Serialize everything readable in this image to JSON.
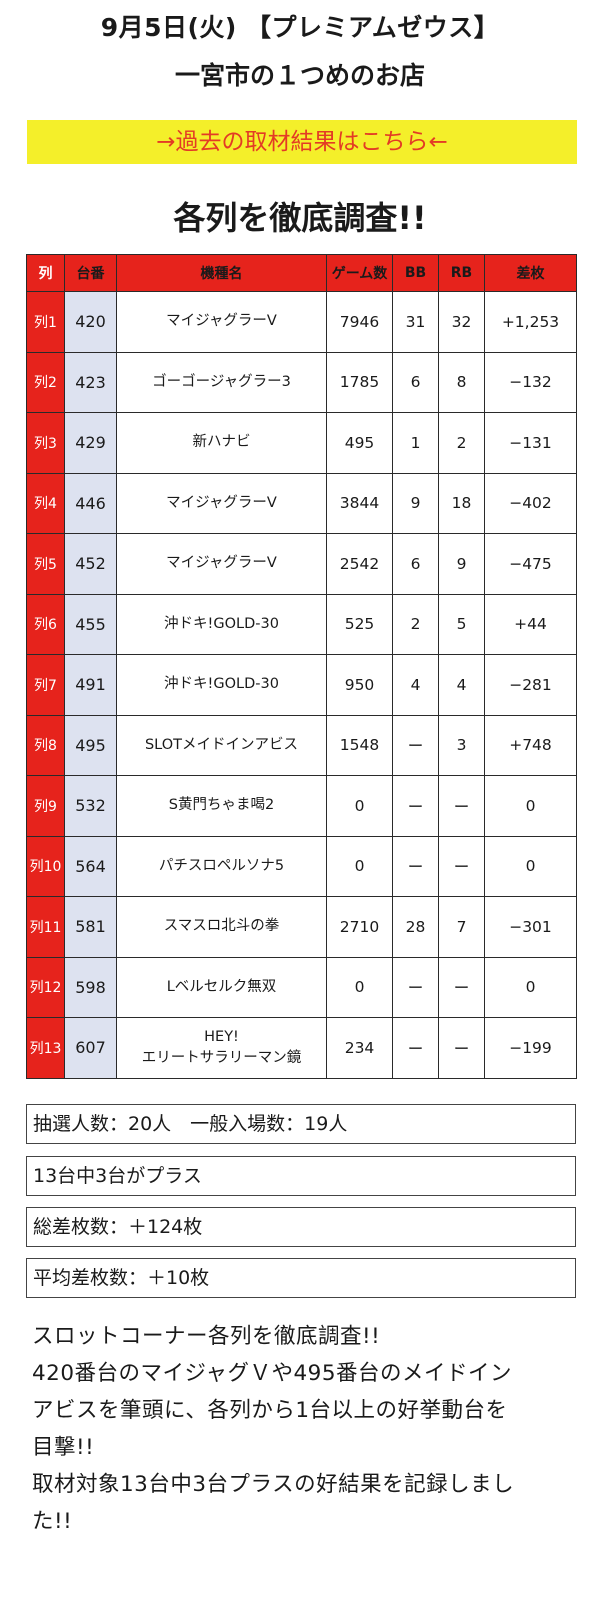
{
  "header": {
    "line1": "9月5日(火) 【プレミアムゼウス】",
    "line2": "一宮市の１つめのお店"
  },
  "banner": {
    "label": "→過去の取材結果はこちら←",
    "bg_color": "#f4ef2a",
    "text_color": "#e33b25"
  },
  "section_title": "各列を徹底調査!!",
  "table": {
    "accent_color": "#e6231c",
    "unit_col_color": "#dde2f0",
    "headers": [
      "列",
      "台番",
      "機種名",
      "ゲーム数",
      "BB",
      "RB",
      "差枚"
    ],
    "rows": [
      {
        "label": "列1",
        "unit": "420",
        "machine": "マイジャグラーV",
        "machine2": "",
        "games": "7946",
        "bb": "31",
        "rb": "32",
        "diff": "+1,253"
      },
      {
        "label": "列2",
        "unit": "423",
        "machine": "ゴーゴージャグラー3",
        "machine2": "",
        "games": "1785",
        "bb": "6",
        "rb": "8",
        "diff": "−132"
      },
      {
        "label": "列3",
        "unit": "429",
        "machine": "新ハナビ",
        "machine2": "",
        "games": "495",
        "bb": "1",
        "rb": "2",
        "diff": "−131"
      },
      {
        "label": "列4",
        "unit": "446",
        "machine": "マイジャグラーV",
        "machine2": "",
        "games": "3844",
        "bb": "9",
        "rb": "18",
        "diff": "−402"
      },
      {
        "label": "列5",
        "unit": "452",
        "machine": "マイジャグラーV",
        "machine2": "",
        "games": "2542",
        "bb": "6",
        "rb": "9",
        "diff": "−475"
      },
      {
        "label": "列6",
        "unit": "455",
        "machine": "沖ドキ!GOLD-30",
        "machine2": "",
        "games": "525",
        "bb": "2",
        "rb": "5",
        "diff": "+44"
      },
      {
        "label": "列7",
        "unit": "491",
        "machine": "沖ドキ!GOLD-30",
        "machine2": "",
        "games": "950",
        "bb": "4",
        "rb": "4",
        "diff": "−281"
      },
      {
        "label": "列8",
        "unit": "495",
        "machine": "SLOTメイドインアビス",
        "machine2": "",
        "games": "1548",
        "bb": "ー",
        "rb": "3",
        "diff": "+748"
      },
      {
        "label": "列9",
        "unit": "532",
        "machine": "S黄門ちゃま喝2",
        "machine2": "",
        "games": "0",
        "bb": "ー",
        "rb": "ー",
        "diff": "0"
      },
      {
        "label": "列10",
        "unit": "564",
        "machine": "パチスロペルソナ5",
        "machine2": "",
        "games": "0",
        "bb": "ー",
        "rb": "ー",
        "diff": "0"
      },
      {
        "label": "列11",
        "unit": "581",
        "machine": "スマスロ北斗の拳",
        "machine2": "",
        "games": "2710",
        "bb": "28",
        "rb": "7",
        "diff": "−301"
      },
      {
        "label": "列12",
        "unit": "598",
        "machine": "Lベルセルク無双",
        "machine2": "",
        "games": "0",
        "bb": "ー",
        "rb": "ー",
        "diff": "0"
      },
      {
        "label": "列13",
        "unit": "607",
        "machine": "HEY!",
        "machine2": "エリートサラリーマン鏡",
        "games": "234",
        "bb": "ー",
        "rb": "ー",
        "diff": "−199"
      }
    ]
  },
  "stats": {
    "lottery": "抽選人数：20人　一般入場数：19人",
    "plus_count": "13台中3台がプラス",
    "total_diff": "総差枚数：＋124枚",
    "avg_diff": "平均差枚数：＋10枚"
  },
  "comment": {
    "lines": [
      "スロットコーナー各列を徹底調査!!",
      "420番台のマイジャグＶや495番台のメイドイン",
      "アビスを筆頭に、各列から1台以上の好挙動台を",
      "目撃!!",
      "取材対象13台中3台プラスの好結果を記録しまし",
      "た!!"
    ]
  }
}
